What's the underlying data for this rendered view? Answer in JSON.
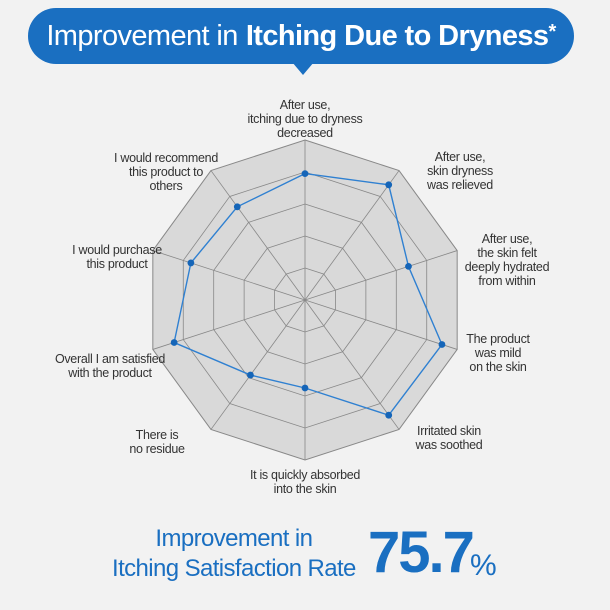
{
  "title": {
    "regular": "Improvement in",
    "bold": "Itching Due to Dryness",
    "marker": "*"
  },
  "chart_data": {
    "type": "radar",
    "axes": [
      "After use,\nitching due to dryness\ndecreased",
      "After use,\nskin dryness\nwas relieved",
      "After use,\nthe skin felt\ndeeply hydrated\nfrom within",
      "The product\nwas mild\non the skin",
      "Irritated skin\nwas soothed",
      "It is quickly absorbed\ninto the skin",
      "There is\nno residue",
      "Overall I am satisfied\nwith the product",
      "I would purchase\nthis product",
      "I would recommend\nthis product to\nothers"
    ],
    "values": [
      0.79,
      0.89,
      0.68,
      0.9,
      0.89,
      0.55,
      0.58,
      0.86,
      0.75,
      0.72
    ],
    "rlim": [
      0,
      1
    ],
    "rings": 5,
    "grid": true,
    "legend": "none"
  },
  "summary": {
    "label": "Improvement in\nItching Satisfaction Rate",
    "value": "75.7",
    "unit": "%"
  },
  "colors": {
    "accent": "#1a6fc1",
    "series_line": "#2f80d1",
    "point": "#1565b8",
    "grid_fill": "#d9d9d9",
    "grid_line": "#888888",
    "background": "#f2f2f2"
  }
}
